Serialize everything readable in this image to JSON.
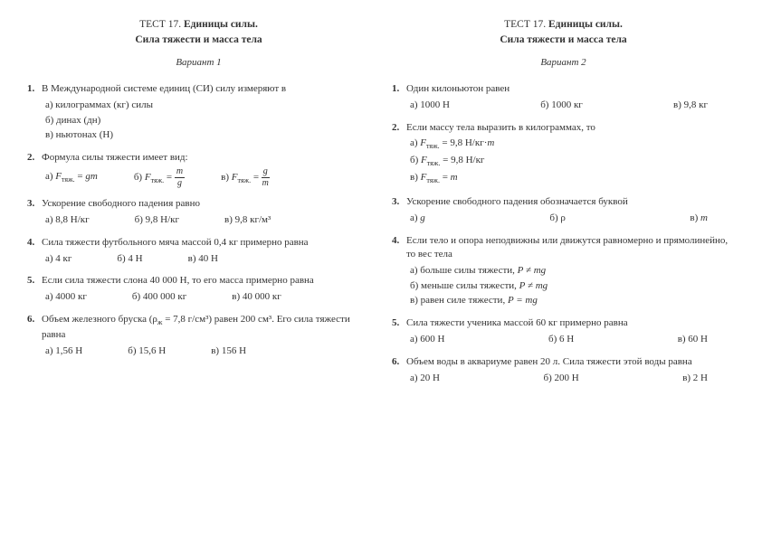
{
  "test_label": "ТЕСТ 17.",
  "title_main": "Единицы силы.",
  "subtitle": "Сила тяжести и масса тела",
  "left": {
    "variant": "Вариант 1",
    "q1": {
      "text": "В Международной системе единиц (СИ) силу измеряют в",
      "a": "а) килограммах (кг) силы",
      "b": "б) динах (дн)",
      "c": "в) ньютонах (Н)"
    },
    "q2": {
      "text": "Формула силы тяжести имеет вид:",
      "a_pre": "а) ",
      "b_pre": "б) ",
      "c_pre": "в) "
    },
    "q3": {
      "text": "Ускорение свободного падения равно",
      "a": "а) 8,8 Н/кг",
      "b": "б) 9,8 Н/кг",
      "c": "в) 9,8 кг/м³"
    },
    "q4": {
      "text": "Сила тяжести футбольного мяча массой 0,4 кг примерно равна",
      "a": "а) 4 кг",
      "b": "б) 4 Н",
      "c": "в) 40 Н"
    },
    "q5": {
      "text": "Если сила тяжести слона 40 000 Н, то его масса примерно равна",
      "a": "а) 4000 кг",
      "b": "б) 400 000 кг",
      "c": "в) 40 000 кг"
    },
    "q6": {
      "text_pre": "Объем железного бруска (ρ",
      "text_mid": " = 7,8 г/см³) равен 200 см³. Его сила тяжести равна",
      "a": "а) 1,56 Н",
      "b": "б) 15,6 Н",
      "c": "в) 156 Н"
    }
  },
  "right": {
    "variant": "Вариант 2",
    "q1": {
      "text": "Один килоньютон равен",
      "a": "а) 1000 Н",
      "b": "б) 1000 кг",
      "c": "в) 9,8 кг"
    },
    "q2": {
      "text": "Если массу тела выразить в килограммах, то",
      "a_pre": "а) ",
      "a_val": " = 9,8 Н/кг·",
      "b_pre": "б) ",
      "b_val": " = 9,8 Н/кг",
      "c_pre": "в) ",
      "c_val": " = "
    },
    "q3": {
      "text": "Ускорение свободного падения обозначается буквой",
      "a": "а) ",
      "a_sym": "g",
      "b": "б) ρ",
      "c": "в) ",
      "c_sym": "m"
    },
    "q4": {
      "text": "Если тело и опора неподвижны или движутся равномерно и прямолинейно, то вес тела",
      "a": "а) больше силы тяжести, ",
      "b": "б) меньше силы тяжести, ",
      "c": "в) равен силе тяжести, ",
      "rel_ne": "P ≠ mg",
      "rel_eq": "P = mg"
    },
    "q5": {
      "text": "Сила тяжести ученика массой 60 кг примерно равна",
      "a": "а) 600 Н",
      "b": "б) 6 Н",
      "c": "в) 60 Н"
    },
    "q6": {
      "text": "Объем воды в аквариуме равен 20 л. Сила тяжести этой воды равна",
      "a": "а) 20 Н",
      "b": "б) 200 Н",
      "c": "в) 2 Н"
    }
  }
}
